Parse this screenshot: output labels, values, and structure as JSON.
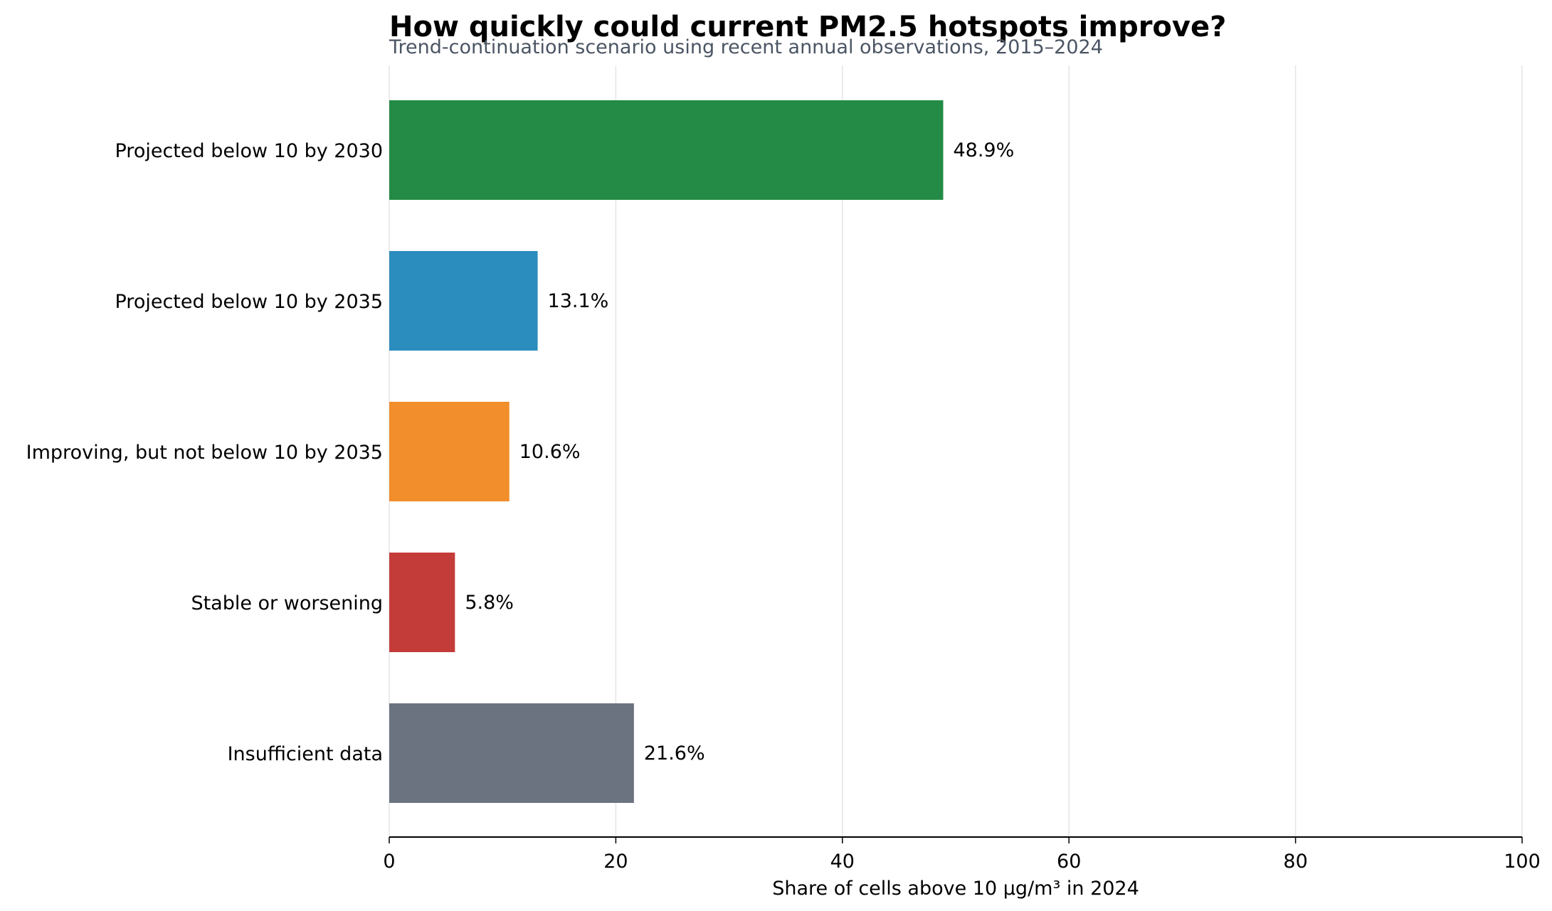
{
  "chart_data": {
    "type": "bar",
    "orientation": "horizontal",
    "title": "How quickly could current PM2.5 hotspots improve?",
    "subtitle": "Trend-continuation scenario using recent annual observations, 2015–2024",
    "xlabel": "Share of cells above 10 µg/m³ in 2024",
    "ylabel": "",
    "xlim": [
      0,
      100
    ],
    "xticks": [
      0,
      20,
      40,
      60,
      80,
      100
    ],
    "grid": "vertical",
    "legend": "none",
    "value_suffix": "%",
    "categories": [
      "Projected below 10 by 2030",
      "Projected below 10 by 2035",
      "Improving, but not below 10 by 2035",
      "Stable or worsening",
      "Insufficient data"
    ],
    "values": [
      48.9,
      13.1,
      10.6,
      5.8,
      21.6
    ],
    "value_labels": [
      "48.9%",
      "13.1%",
      "10.6%",
      "5.8%",
      "21.6%"
    ],
    "colors": [
      "#238b45",
      "#2b8cbe",
      "#f28e2b",
      "#c43c39",
      "#6b7280"
    ]
  }
}
